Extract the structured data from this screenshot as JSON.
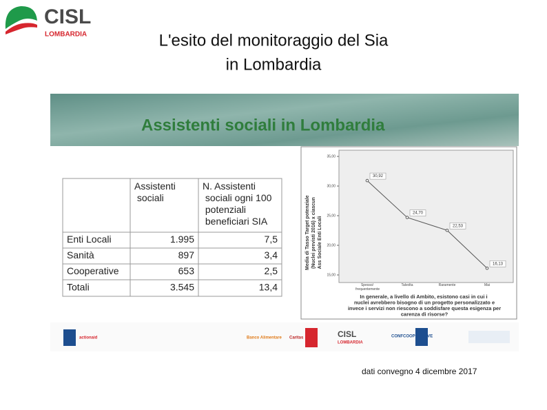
{
  "header": {
    "brand": "CISL",
    "region": "LOMBARDIA",
    "title_lines": [
      "L'esito del monitoraggio del Sia",
      "in Lombardia"
    ]
  },
  "banner": "Assistenti sociali in Lombardia",
  "table": {
    "header": [
      "Assistenti sociali",
      "N. Assistenti sociali ogni 100 potenziali beneficiari SIA"
    ],
    "rows": [
      [
        "Enti Locali",
        "1.995",
        "7,5"
      ],
      [
        "Sanità",
        "897",
        "3,4"
      ],
      [
        "Cooperative",
        "653",
        "2,5"
      ],
      [
        "Totali",
        "3.545",
        "13,4"
      ]
    ]
  },
  "chart_data": {
    "type": "line",
    "y_label": "Media di Tasso Target potenziale (Nuclei previsti 2016) x ciascun Ass Sociale Enti Locali",
    "categories": [
      "Spesso/ frequentemente",
      "Talvolta",
      "Raramente",
      "Mai"
    ],
    "values": [
      30.92,
      24.7,
      22.53,
      16.13
    ],
    "value_labels": [
      "30,92",
      "24,70",
      "22,53",
      "16,13"
    ],
    "ylim": [
      15,
      35
    ],
    "yticks": [
      {
        "value": 15,
        "label": "15,00"
      },
      {
        "value": 20,
        "label": "20,00"
      },
      {
        "value": 25,
        "label": "25,00"
      },
      {
        "value": 30,
        "label": "30,00"
      },
      {
        "value": 35,
        "label": "35,00"
      }
    ],
    "color": "#555555",
    "caption": "In generale, a livello di Ambito, esistono casi in cui i nuclei avrebbero bisogno di un progetto personalizzato e invece i servizi non riescono a soddisfare questa esigenza per carenza di risorse?"
  },
  "logos": [
    "actionaid",
    "Banco Alimentare",
    "Caritas",
    "CISL",
    "LOMBARDIA",
    "CONFCOOPERATIVE"
  ],
  "footer": "dati convegno  4 dicembre 2017"
}
